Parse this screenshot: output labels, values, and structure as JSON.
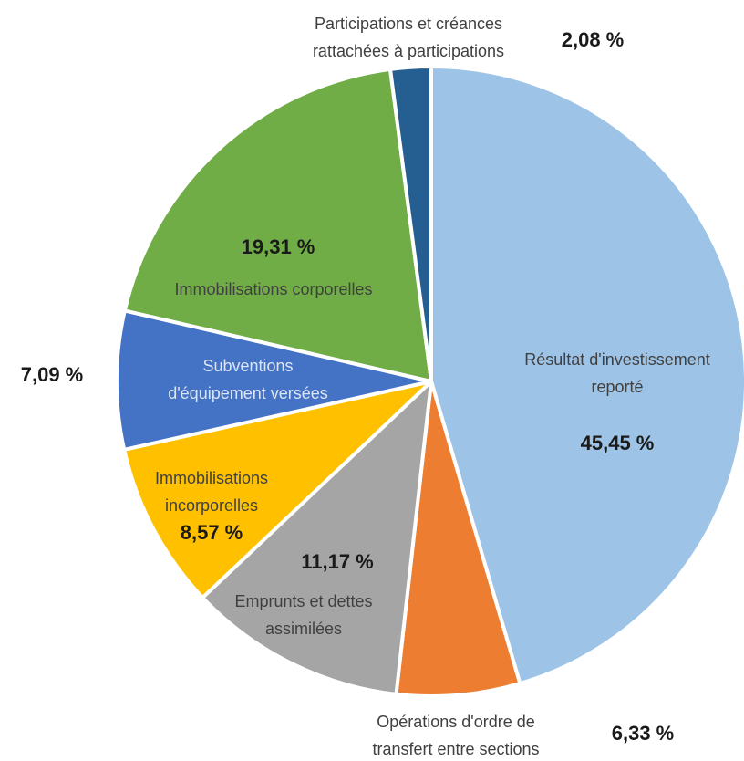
{
  "chart_data": {
    "type": "pie",
    "categories": [
      [
        "Résultat d'investissement",
        "reporté"
      ],
      [
        "Opérations d'ordre de",
        "transfert entre sections"
      ],
      [
        "Emprunts et dettes",
        "assimilées"
      ],
      [
        "Immobilisations",
        "incorporelles"
      ],
      [
        "Subventions",
        "d'équipement versées"
      ],
      [
        "Immobilisations corporelles"
      ],
      [
        "Participations et créances",
        "rattachées à participations"
      ]
    ],
    "values": [
      45.45,
      6.33,
      11.17,
      8.57,
      7.09,
      19.31,
      2.08
    ],
    "value_labels": [
      "45,45 %",
      "6,33 %",
      "11,17 %",
      "8,57 %",
      "7,09 %",
      "19,31 %",
      "2,08 %"
    ],
    "colors": [
      "#9dc3e6",
      "#ed7d31",
      "#a5a5a5",
      "#ffc000",
      "#4472c4",
      "#70ad47",
      "#255e91"
    ]
  }
}
